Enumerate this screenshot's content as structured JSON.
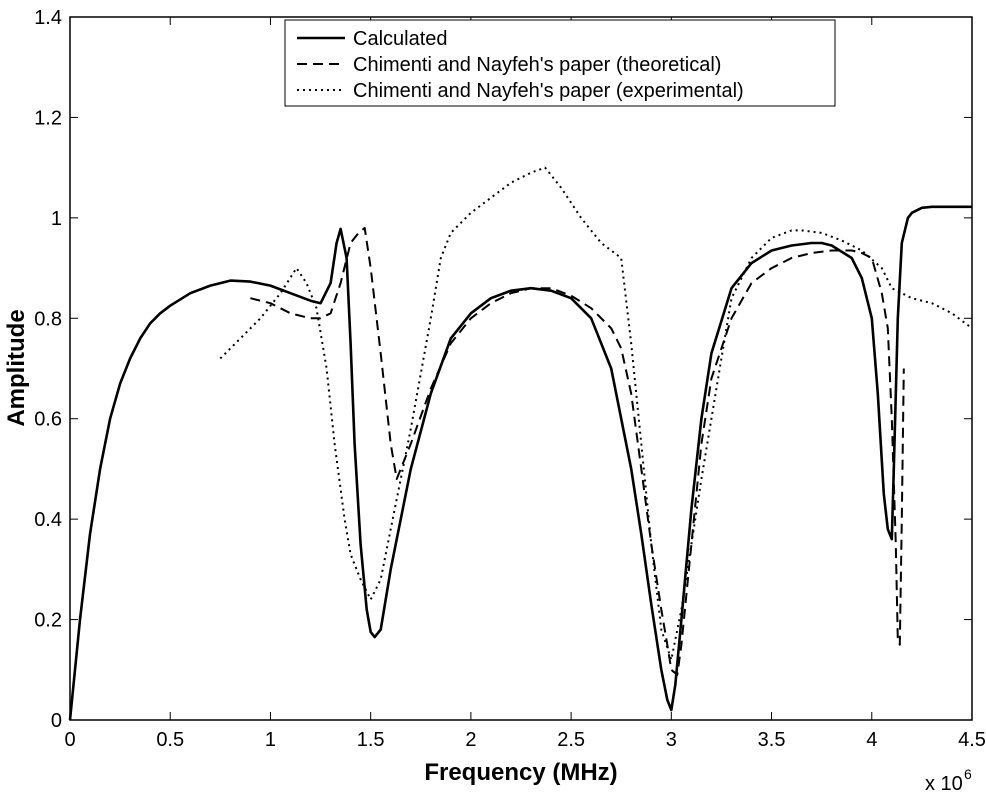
{
  "chart_data": {
    "type": "line",
    "title": "",
    "xlabel": "Frequency (MHz)",
    "ylabel": "Amplitude",
    "xlim": [
      0,
      4500000
    ],
    "ylim": [
      0,
      1.4
    ],
    "x_ticks": [
      0,
      500000,
      1000000,
      1500000,
      2000000,
      2500000,
      3000000,
      3500000,
      4000000,
      4500000
    ],
    "x_tick_labels": [
      "0",
      "0.5",
      "1",
      "1.5",
      "2",
      "2.5",
      "3",
      "3.5",
      "4",
      "4.5"
    ],
    "y_ticks": [
      0,
      0.2,
      0.4,
      0.6,
      0.8,
      1.0,
      1.2,
      1.4
    ],
    "y_tick_labels": [
      "0",
      "0.2",
      "0.4",
      "0.6",
      "0.8",
      "1",
      "1.2",
      "1.4"
    ],
    "x_multiplier": "x 10",
    "x_multiplier_exp": "6",
    "grid": false,
    "legend_position": "top-center",
    "series": [
      {
        "name": "Calculated",
        "style": "solid",
        "color": "#000000",
        "x": [
          0,
          50000,
          100000,
          150000,
          200000,
          250000,
          300000,
          350000,
          400000,
          450000,
          500000,
          600000,
          700000,
          800000,
          900000,
          1000000,
          1100000,
          1200000,
          1250000,
          1300000,
          1330000,
          1350000,
          1380000,
          1400000,
          1420000,
          1450000,
          1480000,
          1500000,
          1520000,
          1550000,
          1600000,
          1700000,
          1800000,
          1900000,
          2000000,
          2100000,
          2200000,
          2300000,
          2400000,
          2500000,
          2600000,
          2700000,
          2800000,
          2850000,
          2900000,
          2950000,
          2980000,
          3000000,
          3020000,
          3050000,
          3100000,
          3150000,
          3200000,
          3300000,
          3400000,
          3500000,
          3600000,
          3700000,
          3750000,
          3800000,
          3900000,
          3950000,
          4000000,
          4030000,
          4060000,
          4080000,
          4100000,
          4110000,
          4130000,
          4150000,
          4180000,
          4200000,
          4250000,
          4300000,
          4400000,
          4500000
        ],
        "y": [
          0.0,
          0.2,
          0.37,
          0.5,
          0.6,
          0.67,
          0.72,
          0.76,
          0.79,
          0.81,
          0.825,
          0.85,
          0.865,
          0.875,
          0.873,
          0.865,
          0.85,
          0.835,
          0.83,
          0.87,
          0.95,
          0.978,
          0.92,
          0.75,
          0.55,
          0.35,
          0.22,
          0.175,
          0.165,
          0.18,
          0.3,
          0.5,
          0.65,
          0.76,
          0.81,
          0.84,
          0.855,
          0.86,
          0.855,
          0.84,
          0.8,
          0.7,
          0.5,
          0.37,
          0.23,
          0.1,
          0.04,
          0.02,
          0.07,
          0.2,
          0.42,
          0.6,
          0.73,
          0.86,
          0.91,
          0.935,
          0.945,
          0.95,
          0.95,
          0.945,
          0.92,
          0.88,
          0.8,
          0.65,
          0.45,
          0.38,
          0.36,
          0.5,
          0.8,
          0.95,
          1.0,
          1.01,
          1.02,
          1.022,
          1.022,
          1.022
        ]
      },
      {
        "name": "Chimenti and Nayfeh's paper (theoretical)",
        "style": "dashed",
        "color": "#000000",
        "x": [
          900000,
          1000000,
          1100000,
          1200000,
          1250000,
          1300000,
          1350000,
          1400000,
          1440000,
          1470000,
          1500000,
          1550000,
          1600000,
          1630000,
          1700000,
          1800000,
          1900000,
          2000000,
          2100000,
          2200000,
          2300000,
          2400000,
          2500000,
          2600000,
          2700000,
          2750000,
          2800000,
          2850000,
          2900000,
          2950000,
          2980000,
          3000000,
          3030000,
          3050000,
          3100000,
          3150000,
          3200000,
          3300000,
          3400000,
          3500000,
          3600000,
          3700000,
          3800000,
          3900000,
          3950000,
          4000000,
          4050000,
          4080000,
          4100000,
          4120000,
          4130000,
          4140000,
          4150000,
          4160000
        ],
        "y": [
          0.84,
          0.83,
          0.81,
          0.8,
          0.8,
          0.81,
          0.87,
          0.95,
          0.97,
          0.98,
          0.9,
          0.73,
          0.55,
          0.48,
          0.55,
          0.66,
          0.75,
          0.8,
          0.83,
          0.85,
          0.86,
          0.86,
          0.845,
          0.82,
          0.78,
          0.74,
          0.65,
          0.5,
          0.35,
          0.22,
          0.15,
          0.1,
          0.09,
          0.15,
          0.35,
          0.55,
          0.68,
          0.8,
          0.87,
          0.9,
          0.92,
          0.93,
          0.935,
          0.935,
          0.93,
          0.92,
          0.85,
          0.78,
          0.6,
          0.35,
          0.16,
          0.15,
          0.4,
          0.7
        ]
      },
      {
        "name": "Chimenti and Nayfeh's paper (experimental)",
        "style": "dotted",
        "color": "#000000",
        "x": [
          750000,
          850000,
          950000,
          1050000,
          1130000,
          1180000,
          1230000,
          1280000,
          1320000,
          1370000,
          1400000,
          1450000,
          1500000,
          1550000,
          1600000,
          1700000,
          1800000,
          1850000,
          1900000,
          2000000,
          2100000,
          2200000,
          2300000,
          2370000,
          2450000,
          2550000,
          2650000,
          2750000,
          2800000,
          2850000,
          2900000,
          2950000,
          3000000,
          3050000,
          3150000,
          3250000,
          3300000,
          3400000,
          3500000,
          3600000,
          3650000,
          3750000,
          3850000,
          3950000,
          4050000,
          4100000,
          4200000,
          4300000,
          4400000,
          4500000
        ],
        "y": [
          0.72,
          0.76,
          0.8,
          0.85,
          0.9,
          0.87,
          0.82,
          0.7,
          0.55,
          0.4,
          0.33,
          0.28,
          0.24,
          0.28,
          0.38,
          0.58,
          0.8,
          0.92,
          0.97,
          1.01,
          1.04,
          1.07,
          1.09,
          1.1,
          1.06,
          1.0,
          0.95,
          0.92,
          0.75,
          0.55,
          0.35,
          0.18,
          0.12,
          0.22,
          0.48,
          0.72,
          0.84,
          0.92,
          0.96,
          0.975,
          0.975,
          0.97,
          0.955,
          0.935,
          0.9,
          0.86,
          0.84,
          0.83,
          0.81,
          0.78
        ]
      }
    ]
  }
}
